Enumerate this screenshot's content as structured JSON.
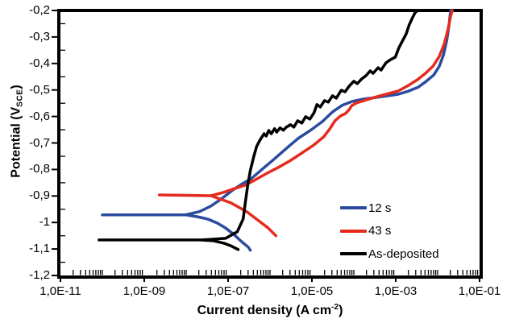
{
  "chart_data": {
    "type": "line",
    "title": "",
    "x_axis": {
      "title_prefix": "Current density (A cm",
      "title_sup": "-2",
      "title_suffix": ")",
      "scale": "log10",
      "range_log": [
        -11,
        -1
      ],
      "tick_logs": [
        -11,
        -9,
        -7,
        -5,
        -3,
        -1
      ],
      "tick_labels": [
        "1,0E-11",
        "1,0E-09",
        "1,0E-07",
        "1,0E-05",
        "1,0E-03",
        "1,0E-01"
      ],
      "minor_ticks": "log decades, inside",
      "grid": "off"
    },
    "y_axis": {
      "title_prefix": "Potential (V",
      "title_sub": "SCE",
      "title_suffix": ")",
      "range": [
        -1.2,
        -0.2
      ],
      "major_step": 0.1,
      "minor_step": 0.05,
      "tick_values": [
        -0.2,
        -0.3,
        -0.4,
        -0.5,
        -0.6,
        -0.7,
        -0.8,
        -0.9,
        -1.0,
        -1.1,
        -1.2
      ],
      "tick_labels": [
        "-0,2",
        "-0,3",
        "-0,4",
        "-0,5",
        "-0,6",
        "-0,7",
        "-0,8",
        "-0,9",
        "-1",
        "-1,1",
        "-1,2"
      ]
    },
    "legend": {
      "position": "inside-lower-right"
    },
    "series": [
      {
        "name": "12 s",
        "color": "#2b4b9e",
        "ecorr_V": -0.97,
        "anodic_logI_E": [
          [
            -10.0,
            -0.971
          ],
          [
            -8.02,
            -0.971
          ],
          [
            -7.68,
            -0.959
          ],
          [
            -7.41,
            -0.938
          ],
          [
            -7.16,
            -0.911
          ],
          [
            -6.91,
            -0.88
          ],
          [
            -6.68,
            -0.856
          ],
          [
            -6.45,
            -0.835
          ],
          [
            -6.2,
            -0.801
          ],
          [
            -5.91,
            -0.762
          ],
          [
            -5.62,
            -0.722
          ],
          [
            -5.33,
            -0.683
          ],
          [
            -5.04,
            -0.653
          ],
          [
            -4.75,
            -0.619
          ],
          [
            -4.51,
            -0.583
          ],
          [
            -4.28,
            -0.558
          ],
          [
            -4.03,
            -0.543
          ],
          [
            -3.76,
            -0.534
          ],
          [
            -3.46,
            -0.528
          ],
          [
            -3.19,
            -0.522
          ],
          [
            -2.94,
            -0.516
          ],
          [
            -2.69,
            -0.504
          ],
          [
            -2.46,
            -0.489
          ],
          [
            -2.27,
            -0.467
          ],
          [
            -2.09,
            -0.443
          ],
          [
            -1.96,
            -0.41
          ],
          [
            -1.86,
            -0.367
          ],
          [
            -1.78,
            -0.312
          ],
          [
            -1.73,
            -0.258
          ],
          [
            -1.69,
            -0.2
          ]
        ],
        "cathodic_logI_E": [
          [
            -8.02,
            -0.971
          ],
          [
            -7.74,
            -0.978
          ],
          [
            -7.49,
            -0.987
          ],
          [
            -7.26,
            -1.002
          ],
          [
            -7.07,
            -1.02
          ],
          [
            -6.87,
            -1.044
          ],
          [
            -6.68,
            -1.072
          ],
          [
            -6.52,
            -1.093
          ],
          [
            -6.47,
            -1.105
          ]
        ]
      },
      {
        "name": "43 s",
        "color": "#e62a1e",
        "ecorr_V": -0.9,
        "anodic_logI_E": [
          [
            -8.64,
            -0.896
          ],
          [
            -7.41,
            -0.899
          ],
          [
            -7.1,
            -0.886
          ],
          [
            -6.83,
            -0.871
          ],
          [
            -6.59,
            -0.859
          ],
          [
            -6.34,
            -0.838
          ],
          [
            -6.07,
            -0.814
          ],
          [
            -5.8,
            -0.792
          ],
          [
            -5.53,
            -0.768
          ],
          [
            -5.24,
            -0.738
          ],
          [
            -4.95,
            -0.707
          ],
          [
            -4.72,
            -0.677
          ],
          [
            -4.57,
            -0.646
          ],
          [
            -4.45,
            -0.616
          ],
          [
            -4.32,
            -0.598
          ],
          [
            -4.2,
            -0.589
          ],
          [
            -4.11,
            -0.574
          ],
          [
            -4.05,
            -0.559
          ],
          [
            -3.94,
            -0.549
          ],
          [
            -3.76,
            -0.54
          ],
          [
            -3.51,
            -0.528
          ],
          [
            -3.23,
            -0.516
          ],
          [
            -2.94,
            -0.504
          ],
          [
            -2.69,
            -0.482
          ],
          [
            -2.48,
            -0.461
          ],
          [
            -2.29,
            -0.437
          ],
          [
            -2.11,
            -0.41
          ],
          [
            -1.96,
            -0.373
          ],
          [
            -1.84,
            -0.325
          ],
          [
            -1.75,
            -0.27
          ],
          [
            -1.69,
            -0.221
          ],
          [
            -1.65,
            -0.2
          ]
        ],
        "cathodic_logI_E": [
          [
            -7.41,
            -0.899
          ],
          [
            -6.93,
            -0.926
          ],
          [
            -6.55,
            -0.96
          ],
          [
            -6.3,
            -0.99
          ],
          [
            -6.05,
            -1.02
          ],
          [
            -5.86,
            -1.05
          ]
        ]
      },
      {
        "name": "As-deposited",
        "color": "#000000",
        "ecorr_V": -1.07,
        "anodic_logI_E": [
          [
            -10.08,
            -1.066
          ],
          [
            -7.64,
            -1.066
          ],
          [
            -7.06,
            -1.06
          ],
          [
            -6.78,
            -1.035
          ],
          [
            -6.64,
            -0.987
          ],
          [
            -6.59,
            -0.926
          ],
          [
            -6.53,
            -0.859
          ],
          [
            -6.47,
            -0.804
          ],
          [
            -6.39,
            -0.753
          ],
          [
            -6.32,
            -0.713
          ],
          [
            -6.24,
            -0.689
          ],
          [
            -6.14,
            -0.665
          ],
          [
            -6.09,
            -0.674
          ],
          [
            -6.03,
            -0.653
          ],
          [
            -5.97,
            -0.665
          ],
          [
            -5.89,
            -0.646
          ],
          [
            -5.84,
            -0.659
          ],
          [
            -5.76,
            -0.643
          ],
          [
            -5.68,
            -0.652
          ],
          [
            -5.61,
            -0.64
          ],
          [
            -5.51,
            -0.631
          ],
          [
            -5.43,
            -0.64
          ],
          [
            -5.34,
            -0.616
          ],
          [
            -5.24,
            -0.625
          ],
          [
            -5.15,
            -0.601
          ],
          [
            -5.05,
            -0.61
          ],
          [
            -4.95,
            -0.586
          ],
          [
            -4.88,
            -0.555
          ],
          [
            -4.8,
            -0.564
          ],
          [
            -4.7,
            -0.54
          ],
          [
            -4.61,
            -0.546
          ],
          [
            -4.51,
            -0.522
          ],
          [
            -4.42,
            -0.531
          ],
          [
            -4.3,
            -0.501
          ],
          [
            -4.21,
            -0.507
          ],
          [
            -4.11,
            -0.485
          ],
          [
            -4.0,
            -0.467
          ],
          [
            -3.92,
            -0.476
          ],
          [
            -3.81,
            -0.458
          ],
          [
            -3.71,
            -0.446
          ],
          [
            -3.61,
            -0.428
          ],
          [
            -3.54,
            -0.437
          ],
          [
            -3.42,
            -0.416
          ],
          [
            -3.35,
            -0.425
          ],
          [
            -3.23,
            -0.397
          ],
          [
            -3.12,
            -0.385
          ],
          [
            -3.01,
            -0.376
          ],
          [
            -2.93,
            -0.343
          ],
          [
            -2.85,
            -0.318
          ],
          [
            -2.75,
            -0.288
          ],
          [
            -2.68,
            -0.255
          ],
          [
            -2.6,
            -0.227
          ],
          [
            -2.53,
            -0.206
          ],
          [
            -2.46,
            -0.2
          ]
        ],
        "cathodic_logI_E": [
          [
            -7.64,
            -1.066
          ],
          [
            -7.35,
            -1.069
          ],
          [
            -7.1,
            -1.078
          ],
          [
            -6.91,
            -1.09
          ],
          [
            -6.76,
            -1.102
          ]
        ]
      }
    ]
  }
}
